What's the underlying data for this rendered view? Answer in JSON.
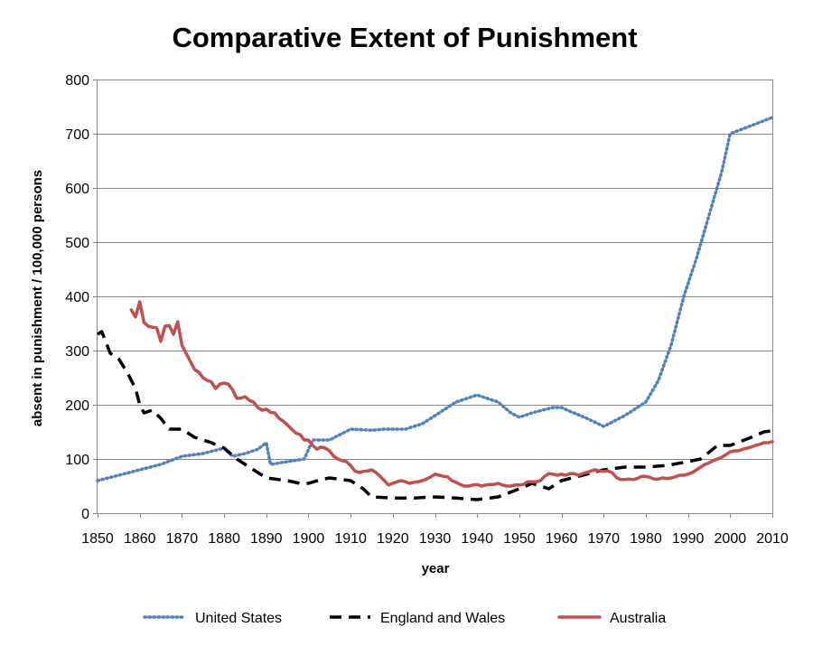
{
  "chart_data": {
    "type": "line",
    "title": "Comparative Extent of Punishment",
    "xlabel": "year",
    "ylabel": "absent in punishment / 100,000 persons",
    "xlim": [
      1850,
      2010
    ],
    "ylim": [
      0,
      800
    ],
    "x_ticks": [
      "1850",
      "1860",
      "1870",
      "1880",
      "1890",
      "1900",
      "1910",
      "1920",
      "1930",
      "1940",
      "1950",
      "1960",
      "1970",
      "1980",
      "1990",
      "2000",
      "2010"
    ],
    "y_ticks": [
      "0",
      "100",
      "200",
      "300",
      "400",
      "500",
      "600",
      "700",
      "800"
    ],
    "grid": "horizontal",
    "legend_position": "bottom",
    "series": [
      {
        "name": "United States",
        "color": "#4F81BD",
        "style": "dotted",
        "points": [
          [
            1850,
            60
          ],
          [
            1855,
            70
          ],
          [
            1860,
            80
          ],
          [
            1865,
            90
          ],
          [
            1870,
            105
          ],
          [
            1875,
            110
          ],
          [
            1880,
            120
          ],
          [
            1882,
            105
          ],
          [
            1885,
            110
          ],
          [
            1888,
            118
          ],
          [
            1890,
            130
          ],
          [
            1891,
            90
          ],
          [
            1895,
            95
          ],
          [
            1899,
            100
          ],
          [
            1901,
            135
          ],
          [
            1905,
            135
          ],
          [
            1910,
            155
          ],
          [
            1915,
            153
          ],
          [
            1918,
            155
          ],
          [
            1923,
            155
          ],
          [
            1927,
            165
          ],
          [
            1930,
            180
          ],
          [
            1935,
            205
          ],
          [
            1940,
            218
          ],
          [
            1945,
            205
          ],
          [
            1948,
            185
          ],
          [
            1950,
            177
          ],
          [
            1953,
            185
          ],
          [
            1958,
            195
          ],
          [
            1960,
            195
          ],
          [
            1962,
            188
          ],
          [
            1966,
            175
          ],
          [
            1970,
            160
          ],
          [
            1975,
            180
          ],
          [
            1980,
            205
          ],
          [
            1983,
            245
          ],
          [
            1986,
            310
          ],
          [
            1989,
            400
          ],
          [
            1992,
            470
          ],
          [
            1995,
            550
          ],
          [
            1998,
            630
          ],
          [
            2000,
            700
          ],
          [
            2005,
            715
          ],
          [
            2010,
            730
          ]
        ]
      },
      {
        "name": "England and Wales",
        "color": "#000000",
        "style": "dashed",
        "points": [
          [
            1850,
            330
          ],
          [
            1851,
            335
          ],
          [
            1853,
            295
          ],
          [
            1855,
            285
          ],
          [
            1857,
            260
          ],
          [
            1859,
            230
          ],
          [
            1860,
            200
          ],
          [
            1861,
            185
          ],
          [
            1863,
            190
          ],
          [
            1865,
            175
          ],
          [
            1867,
            155
          ],
          [
            1870,
            155
          ],
          [
            1873,
            140
          ],
          [
            1875,
            135
          ],
          [
            1877,
            130
          ],
          [
            1880,
            120
          ],
          [
            1883,
            100
          ],
          [
            1885,
            90
          ],
          [
            1887,
            80
          ],
          [
            1890,
            65
          ],
          [
            1895,
            60
          ],
          [
            1898,
            55
          ],
          [
            1900,
            55
          ],
          [
            1903,
            62
          ],
          [
            1905,
            65
          ],
          [
            1910,
            60
          ],
          [
            1913,
            45
          ],
          [
            1915,
            30
          ],
          [
            1920,
            28
          ],
          [
            1925,
            28
          ],
          [
            1930,
            30
          ],
          [
            1935,
            28
          ],
          [
            1940,
            25
          ],
          [
            1945,
            30
          ],
          [
            1950,
            45
          ],
          [
            1953,
            55
          ],
          [
            1957,
            45
          ],
          [
            1960,
            60
          ],
          [
            1965,
            70
          ],
          [
            1970,
            80
          ],
          [
            1975,
            85
          ],
          [
            1980,
            85
          ],
          [
            1985,
            88
          ],
          [
            1990,
            95
          ],
          [
            1993,
            100
          ],
          [
            1997,
            125
          ],
          [
            2000,
            125
          ],
          [
            2005,
            140
          ],
          [
            2008,
            150
          ],
          [
            2010,
            152
          ]
        ]
      },
      {
        "name": "Australia",
        "color": "#C0504D",
        "style": "solid",
        "points": [
          [
            1858,
            375
          ],
          [
            1859,
            362
          ],
          [
            1860,
            390
          ],
          [
            1861,
            352
          ],
          [
            1862,
            345
          ],
          [
            1863,
            343
          ],
          [
            1864,
            342
          ],
          [
            1865,
            317
          ],
          [
            1866,
            345
          ],
          [
            1867,
            346
          ],
          [
            1868,
            330
          ],
          [
            1869,
            353
          ],
          [
            1870,
            310
          ],
          [
            1871,
            295
          ],
          [
            1872,
            280
          ],
          [
            1873,
            265
          ],
          [
            1874,
            260
          ],
          [
            1875,
            250
          ],
          [
            1876,
            245
          ],
          [
            1877,
            242
          ],
          [
            1878,
            230
          ],
          [
            1879,
            238
          ],
          [
            1880,
            240
          ],
          [
            1881,
            238
          ],
          [
            1882,
            228
          ],
          [
            1883,
            212
          ],
          [
            1884,
            212
          ],
          [
            1885,
            215
          ],
          [
            1886,
            208
          ],
          [
            1887,
            205
          ],
          [
            1888,
            195
          ],
          [
            1889,
            190
          ],
          [
            1890,
            192
          ],
          [
            1891,
            186
          ],
          [
            1892,
            185
          ],
          [
            1893,
            175
          ],
          [
            1894,
            170
          ],
          [
            1895,
            163
          ],
          [
            1896,
            155
          ],
          [
            1897,
            148
          ],
          [
            1898,
            145
          ],
          [
            1899,
            135
          ],
          [
            1900,
            135
          ],
          [
            1901,
            125
          ],
          [
            1902,
            118
          ],
          [
            1903,
            122
          ],
          [
            1904,
            120
          ],
          [
            1905,
            115
          ],
          [
            1906,
            105
          ],
          [
            1907,
            100
          ],
          [
            1908,
            97
          ],
          [
            1909,
            95
          ],
          [
            1910,
            88
          ],
          [
            1911,
            78
          ],
          [
            1912,
            75
          ],
          [
            1913,
            77
          ],
          [
            1914,
            78
          ],
          [
            1915,
            80
          ],
          [
            1916,
            75
          ],
          [
            1917,
            68
          ],
          [
            1918,
            60
          ],
          [
            1919,
            52
          ],
          [
            1920,
            55
          ],
          [
            1921,
            58
          ],
          [
            1922,
            60
          ],
          [
            1923,
            58
          ],
          [
            1924,
            55
          ],
          [
            1925,
            57
          ],
          [
            1926,
            58
          ],
          [
            1927,
            60
          ],
          [
            1928,
            63
          ],
          [
            1929,
            67
          ],
          [
            1930,
            72
          ],
          [
            1931,
            70
          ],
          [
            1932,
            68
          ],
          [
            1933,
            67
          ],
          [
            1934,
            60
          ],
          [
            1935,
            57
          ],
          [
            1936,
            53
          ],
          [
            1937,
            50
          ],
          [
            1938,
            50
          ],
          [
            1939,
            52
          ],
          [
            1940,
            53
          ],
          [
            1941,
            50
          ],
          [
            1942,
            52
          ],
          [
            1943,
            53
          ],
          [
            1944,
            53
          ],
          [
            1945,
            55
          ],
          [
            1946,
            52
          ],
          [
            1947,
            50
          ],
          [
            1948,
            50
          ],
          [
            1949,
            52
          ],
          [
            1950,
            52
          ],
          [
            1951,
            53
          ],
          [
            1952,
            58
          ],
          [
            1953,
            58
          ],
          [
            1954,
            58
          ],
          [
            1955,
            60
          ],
          [
            1956,
            68
          ],
          [
            1957,
            73
          ],
          [
            1958,
            72
          ],
          [
            1959,
            70
          ],
          [
            1960,
            72
          ],
          [
            1961,
            70
          ],
          [
            1962,
            73
          ],
          [
            1963,
            73
          ],
          [
            1964,
            70
          ],
          [
            1965,
            73
          ],
          [
            1966,
            75
          ],
          [
            1967,
            78
          ],
          [
            1968,
            80
          ],
          [
            1969,
            78
          ],
          [
            1970,
            77
          ],
          [
            1971,
            78
          ],
          [
            1972,
            75
          ],
          [
            1973,
            66
          ],
          [
            1974,
            62
          ],
          [
            1975,
            62
          ],
          [
            1976,
            63
          ],
          [
            1977,
            62
          ],
          [
            1978,
            64
          ],
          [
            1979,
            68
          ],
          [
            1980,
            68
          ],
          [
            1981,
            66
          ],
          [
            1982,
            63
          ],
          [
            1983,
            63
          ],
          [
            1984,
            65
          ],
          [
            1985,
            64
          ],
          [
            1986,
            65
          ],
          [
            1987,
            67
          ],
          [
            1988,
            70
          ],
          [
            1989,
            70
          ],
          [
            1990,
            72
          ],
          [
            1991,
            75
          ],
          [
            1992,
            80
          ],
          [
            1993,
            85
          ],
          [
            1994,
            90
          ],
          [
            1995,
            93
          ],
          [
            1996,
            97
          ],
          [
            1997,
            100
          ],
          [
            1998,
            103
          ],
          [
            1999,
            108
          ],
          [
            2000,
            113
          ],
          [
            2001,
            115
          ],
          [
            2002,
            115
          ],
          [
            2003,
            118
          ],
          [
            2004,
            120
          ],
          [
            2005,
            122
          ],
          [
            2006,
            125
          ],
          [
            2007,
            127
          ],
          [
            2008,
            130
          ],
          [
            2009,
            130
          ],
          [
            2010,
            132
          ]
        ]
      }
    ]
  }
}
